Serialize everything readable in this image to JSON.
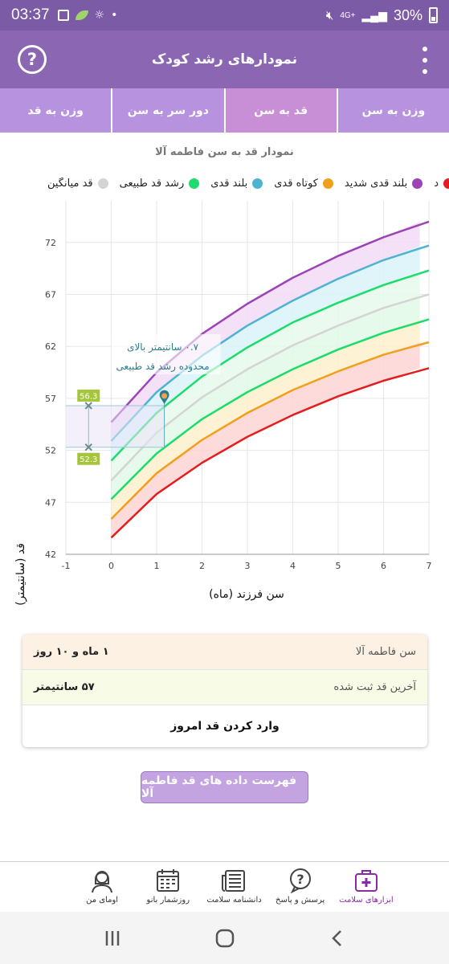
{
  "status": {
    "time": "03:37",
    "network": "4G+",
    "battery": "30%"
  },
  "app_bar": {
    "title": "نمودارهای رشد کودک"
  },
  "tabs": [
    {
      "label": "وزن به سن",
      "active": false
    },
    {
      "label": "قد به سن",
      "active": true
    },
    {
      "label": "دور سر به سن",
      "active": false
    },
    {
      "label": "وزن به قد",
      "active": false
    }
  ],
  "chart_title": "نمودار قد به سن فاطمه آلا",
  "legend": [
    {
      "label": "بلند قدی شدید",
      "color": "#9c44b6"
    },
    {
      "label": "کوتاه قدی",
      "color": "#f1a01c"
    },
    {
      "label": "بلند قدی",
      "color": "#4db3d1"
    },
    {
      "label": "رشد قد طبیعی",
      "color": "#1bdc6c"
    },
    {
      "label": "قد میانگین",
      "color": "#d4d4d4"
    }
  ],
  "legend_cut_left": "د",
  "legend_cut_color": "#e31e1e",
  "chart_data": {
    "type": "line",
    "title": "نمودار قد به سن فاطمه آلا",
    "xlabel": "سن فرزند (ماه)",
    "ylabel": "قد (سانتیمتر)",
    "xlim": [
      -1,
      7
    ],
    "ylim": [
      42,
      76
    ],
    "x_ticks": [
      -1,
      0,
      1,
      2,
      3,
      4,
      5,
      6,
      7
    ],
    "y_ticks": [
      42,
      47,
      52,
      57,
      62,
      67,
      72
    ],
    "x": [
      0,
      1,
      2,
      3,
      4,
      5,
      6,
      6.8
    ],
    "series": [
      {
        "color": "#e31e1e",
        "values": [
          43.6,
          47.8,
          50.8,
          53.3,
          55.4,
          57.2,
          58.7,
          59.9
        ]
      },
      {
        "color": "#f1a01c",
        "values": [
          45.4,
          49.8,
          53.0,
          55.6,
          57.8,
          59.6,
          61.2,
          62.4
        ]
      },
      {
        "color": "#1bdc6c",
        "values": [
          47.3,
          51.7,
          55.0,
          57.6,
          59.8,
          61.7,
          63.3,
          64.6
        ]
      },
      {
        "color": "#d4d4d4",
        "values": [
          49.1,
          53.7,
          57.1,
          59.8,
          62.1,
          64.0,
          65.7,
          67.0
        ]
      },
      {
        "color": "#1bdc6c",
        "values": [
          51.0,
          55.6,
          59.1,
          61.9,
          64.3,
          66.2,
          67.9,
          69.3
        ]
      },
      {
        "color": "#4db3d1",
        "values": [
          52.9,
          57.6,
          61.1,
          64.0,
          66.4,
          68.5,
          70.3,
          71.7
        ]
      },
      {
        "color": "#9c44b6",
        "values": [
          54.7,
          59.5,
          63.2,
          66.1,
          68.6,
          70.7,
          72.5,
          74.0
        ]
      }
    ],
    "measurement": {
      "x": 1.17,
      "y": 57
    },
    "range_labels": {
      "upper": "56.3",
      "lower": "52.3"
    },
    "range_values": {
      "upper": 56.3,
      "lower": 52.3
    },
    "annotation": [
      "۰.۷ سانتیمتر بالای",
      "محدوده رشد قد طبیعی"
    ],
    "grid": true
  },
  "info": {
    "age_label": "سن فاطمه آلا",
    "age_value": "۱ ماه و ۱۰ روز",
    "height_label": "آخرین قد ثبت شده",
    "height_value": "۵۷ سانتیمتر",
    "action": "وارد کردن قد امروز"
  },
  "list_button": "فهرست داده های قد فاطمه آلا",
  "bottom_nav": [
    {
      "label": "ابزارهای سلامت",
      "icon": "first-aid-kit-icon",
      "active": true
    },
    {
      "label": "پرسش و پاسخ",
      "icon": "question-bubble-icon",
      "active": false
    },
    {
      "label": "دانشنامه سلامت",
      "icon": "newspaper-icon",
      "active": false
    },
    {
      "label": "روزشمار بانو",
      "icon": "calendar-icon",
      "active": false
    },
    {
      "label": "اومای من",
      "icon": "woman-avatar-icon",
      "active": false
    }
  ]
}
